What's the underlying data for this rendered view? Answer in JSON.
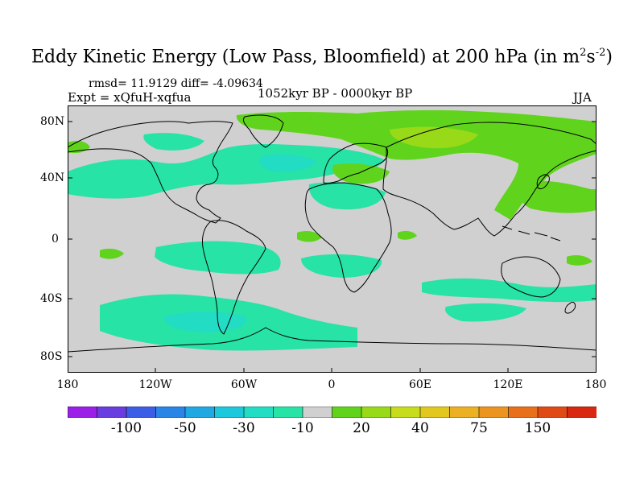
{
  "title": {
    "main": "Eddy Kinetic Energy (Low Pass, Bloomfield) at 200 hPa (in m",
    "sup1": "2",
    "mid": "s",
    "sup2": "-2",
    "end": ")"
  },
  "stats": "rmsd= 11.9129 diff= -4.09634",
  "experiment": "Expt = xQfuH-xqfua",
  "period": "1052kyr BP - 0000kyr BP",
  "season": "JJA",
  "axes": {
    "lat_ticks": [
      "80N",
      "40N",
      "0",
      "40S",
      "80S"
    ],
    "lon_ticks": [
      "180",
      "120W",
      "60W",
      "0",
      "60E",
      "120E",
      "180"
    ]
  },
  "colorbar": {
    "colors": [
      "#9b1fe6",
      "#6a3de0",
      "#3c5ee6",
      "#2a85e6",
      "#20a8e2",
      "#1cc8dc",
      "#22dcc4",
      "#27e3a6",
      "#d0d0d0",
      "#60d41c",
      "#98da18",
      "#c6dc1c",
      "#e2c81e",
      "#ecb024",
      "#ec9420",
      "#e8701a",
      "#e04a16",
      "#d82812"
    ],
    "labels": [
      "-100",
      "-50",
      "-30",
      "-10",
      "20",
      "40",
      "75",
      "150"
    ]
  },
  "map_colors": {
    "background": "#d0d0d0",
    "neg_light": "#27e3a6",
    "neg_mid": "#22dcc4",
    "neg_deep": "#1cc8dc",
    "neg_deeper": "#20a8e2",
    "pos_light": "#60d41c",
    "pos_mid": "#98da18",
    "pos_strong": "#c6dc1c"
  }
}
